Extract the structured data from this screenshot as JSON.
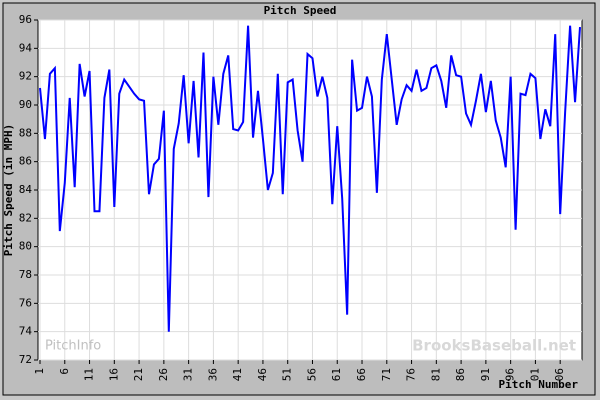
{
  "chart_data": {
    "type": "line",
    "title": "Pitch Speed",
    "xlabel": "Pitch Number",
    "ylabel": "Pitch Speed (in MPH)",
    "annotations": [
      "PitchInfo",
      "BrooksBaseball.net"
    ],
    "x": [
      1,
      2,
      3,
      4,
      5,
      6,
      7,
      8,
      9,
      10,
      11,
      12,
      13,
      14,
      15,
      16,
      17,
      18,
      19,
      20,
      21,
      22,
      23,
      24,
      25,
      26,
      27,
      28,
      29,
      30,
      31,
      32,
      33,
      34,
      35,
      36,
      37,
      38,
      39,
      40,
      41,
      42,
      43,
      44,
      45,
      46,
      47,
      48,
      49,
      50,
      51,
      52,
      53,
      54,
      55,
      56,
      57,
      58,
      59,
      60,
      61,
      62,
      63,
      64,
      65,
      66,
      67,
      68,
      69,
      70,
      71,
      72,
      73,
      74,
      75,
      76,
      77,
      78,
      79,
      80,
      81,
      82,
      83,
      84,
      85,
      86,
      87,
      88,
      89,
      90,
      91,
      92,
      93,
      94,
      95,
      96,
      97,
      98,
      99,
      100,
      101,
      102,
      103,
      104,
      105,
      106,
      107,
      108,
      109,
      110
    ],
    "values": [
      91.2,
      87.6,
      92.2,
      92.6,
      81.1,
      84.5,
      90.5,
      84.2,
      92.9,
      90.6,
      92.4,
      82.5,
      82.5,
      90.5,
      92.5,
      82.8,
      90.8,
      91.8,
      91.3,
      90.8,
      90.4,
      90.3,
      83.7,
      85.8,
      86.2,
      89.6,
      74.0,
      86.9,
      88.7,
      92.1,
      87.3,
      91.7,
      86.3,
      93.7,
      83.5,
      92.0,
      88.6,
      92.2,
      93.5,
      88.3,
      88.2,
      88.8,
      95.6,
      87.7,
      91.0,
      87.6,
      84.0,
      85.2,
      92.2,
      83.7,
      91.6,
      91.8,
      88.2,
      86.0,
      93.6,
      93.3,
      90.6,
      92.0,
      90.5,
      83.0,
      88.5,
      83.4,
      75.2,
      93.2,
      89.6,
      89.8,
      92.0,
      90.6,
      83.8,
      91.8,
      95.0,
      91.8,
      88.6,
      90.4,
      91.4,
      91.0,
      92.5,
      91.0,
      91.2,
      92.6,
      92.8,
      91.7,
      89.8,
      93.5,
      92.1,
      92.0,
      89.4,
      88.6,
      90.3,
      92.2,
      89.5,
      91.7,
      88.9,
      87.7,
      85.6,
      92.0,
      81.2,
      90.8,
      90.7,
      92.2,
      91.9,
      87.6,
      89.7,
      88.5,
      95.0,
      82.3,
      89.5,
      95.6,
      90.2,
      95.5
    ],
    "color": "#0000ff",
    "xlim": [
      1,
      110
    ],
    "ylim": [
      72,
      96
    ],
    "xticks": [
      1,
      6,
      11,
      16,
      21,
      26,
      31,
      36,
      41,
      46,
      51,
      56,
      61,
      66,
      71,
      76,
      81,
      86,
      91,
      96,
      {
        "value": 101,
        "label": "01"
      },
      {
        "value": 106,
        "label": "06"
      }
    ],
    "yticks": [
      72,
      74,
      76,
      78,
      80,
      82,
      84,
      86,
      88,
      90,
      92,
      94,
      96
    ],
    "grid": true
  }
}
